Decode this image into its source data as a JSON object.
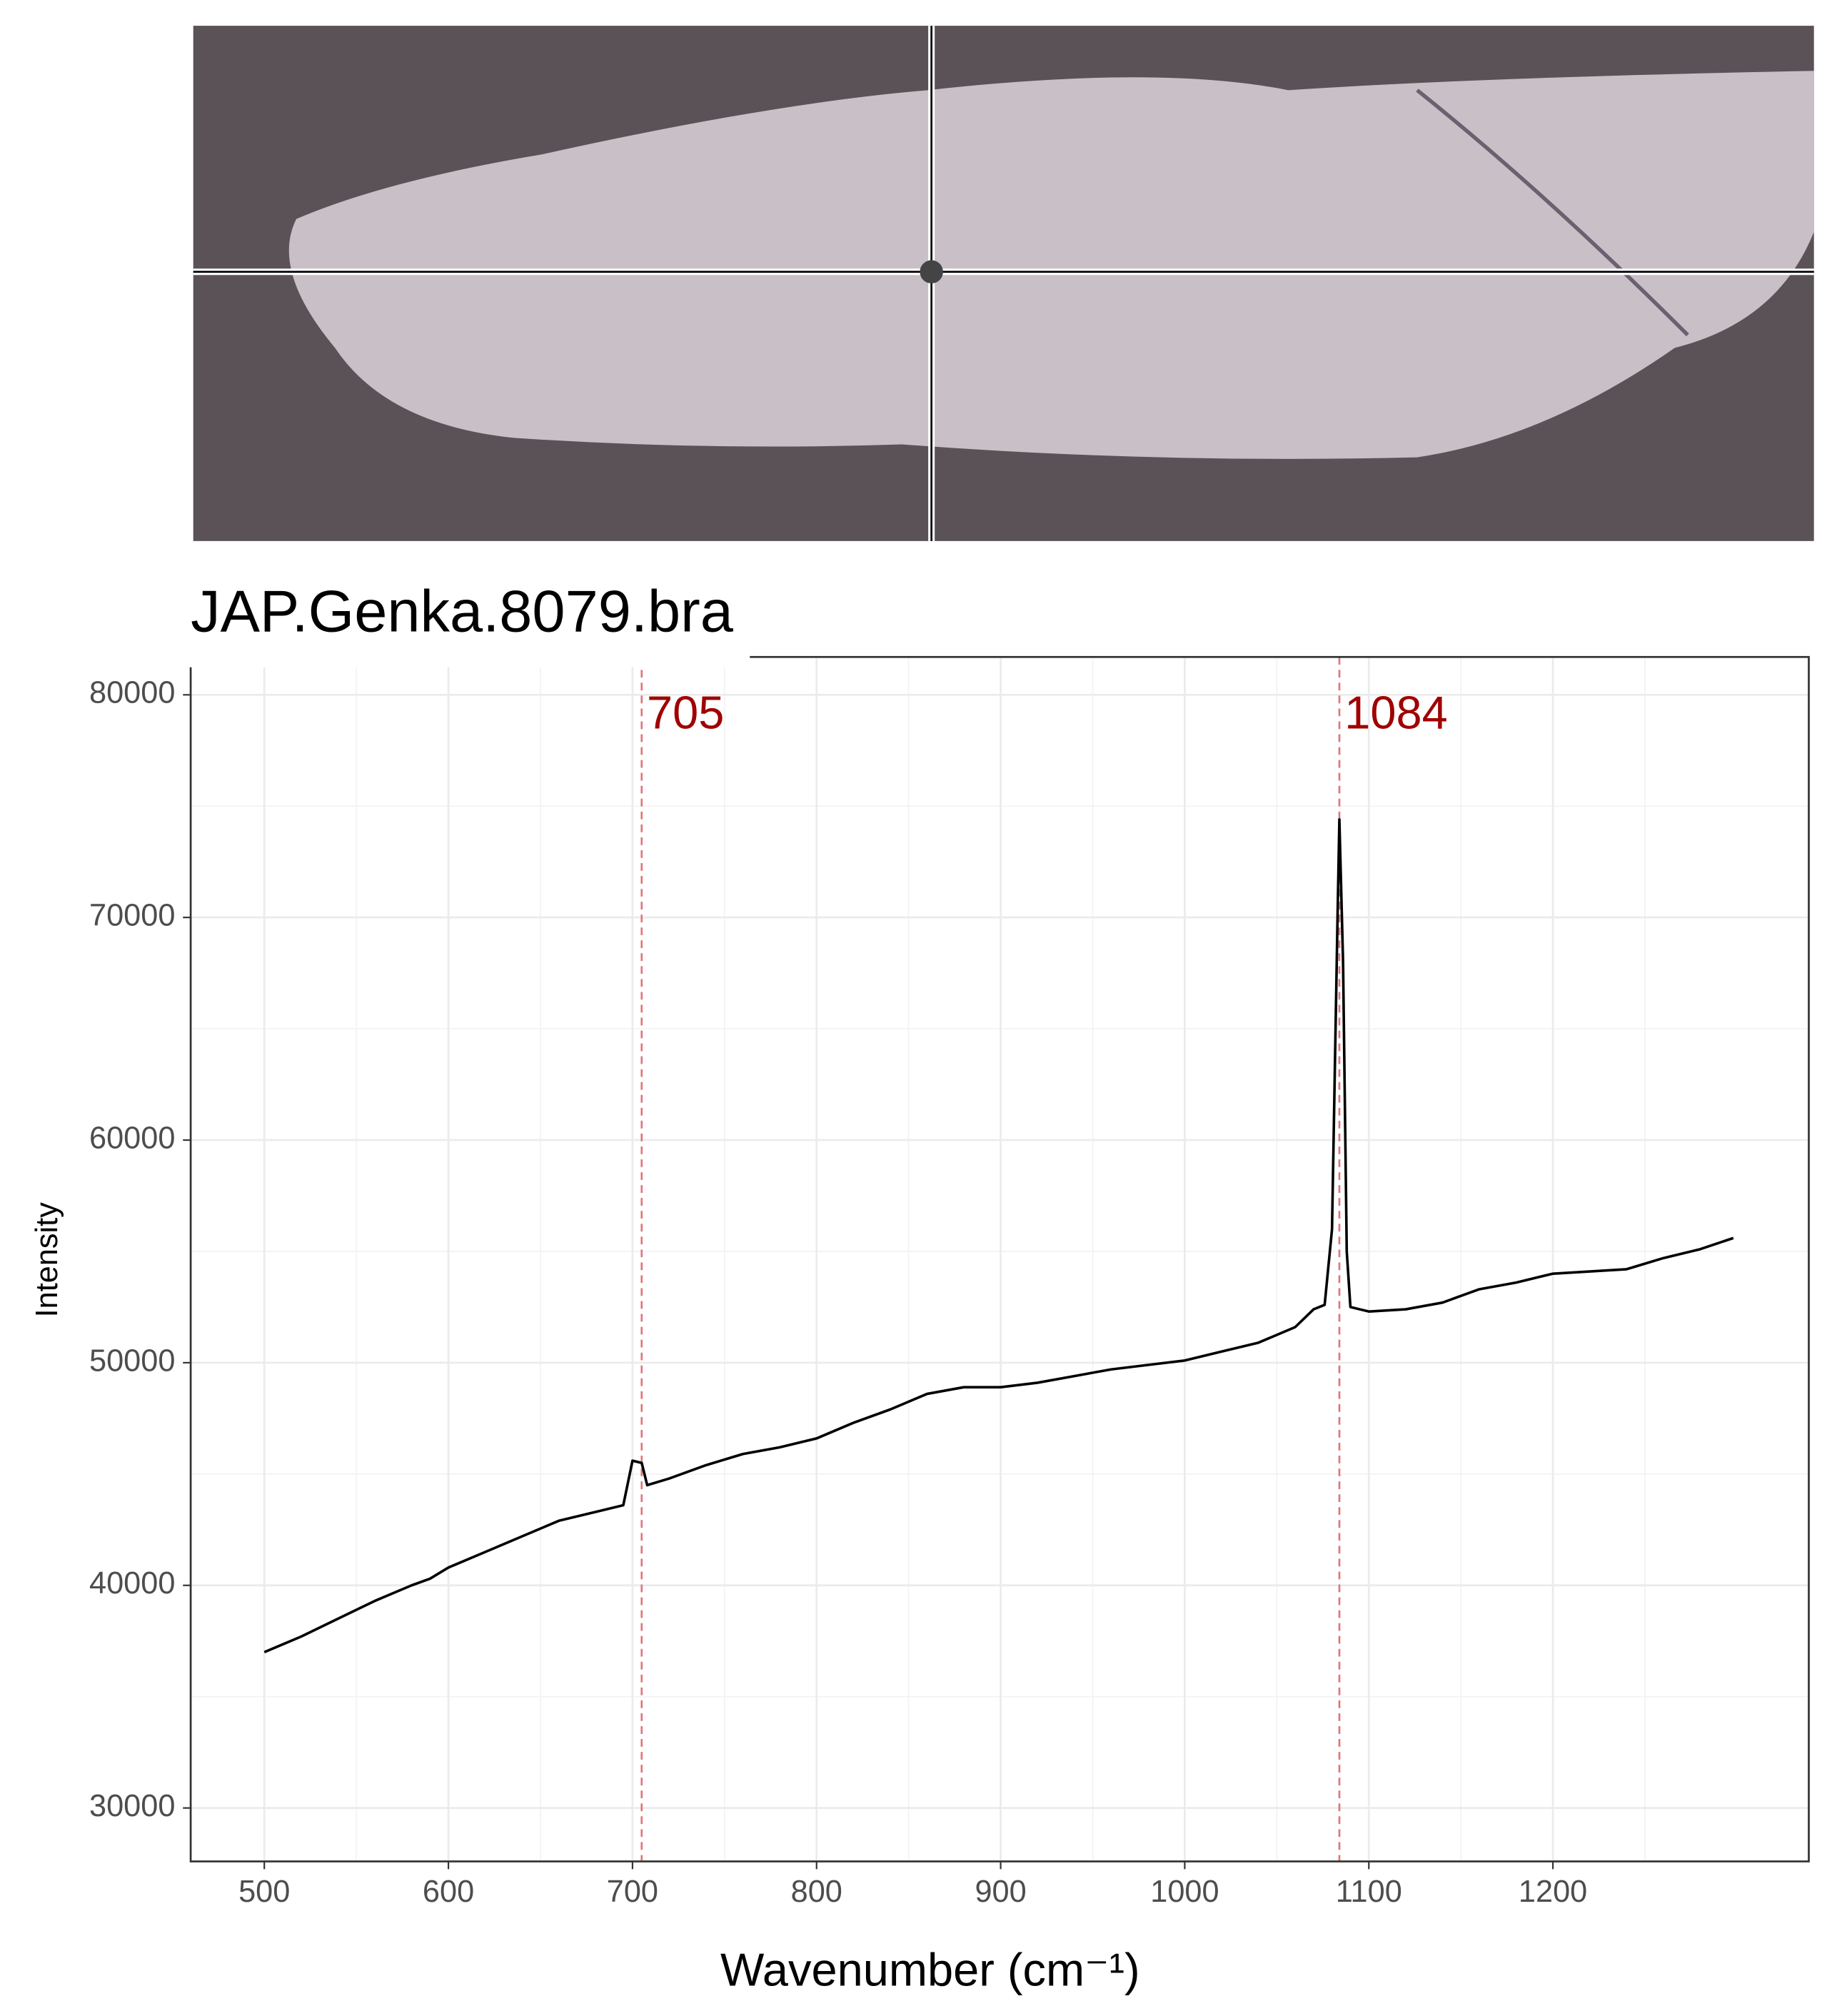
{
  "chart_data": {
    "type": "line",
    "title": "JAP.Genka.8079.bra",
    "xlabel": "Wavenumber (cm⁻¹)",
    "ylabel": "Intensity",
    "x": [
      500,
      520,
      540,
      560,
      580,
      590,
      600,
      620,
      640,
      660,
      680,
      695,
      700,
      705,
      708,
      720,
      740,
      760,
      780,
      800,
      820,
      840,
      860,
      880,
      900,
      920,
      940,
      960,
      980,
      1000,
      1020,
      1040,
      1060,
      1070,
      1076,
      1080,
      1083,
      1084,
      1086,
      1088,
      1090,
      1100,
      1120,
      1140,
      1160,
      1180,
      1200,
      1220,
      1240,
      1260,
      1280,
      1298
    ],
    "values": [
      37000,
      37700,
      38500,
      39300,
      40000,
      40300,
      40800,
      41500,
      42200,
      42900,
      43300,
      43600,
      45600,
      45500,
      44500,
      44800,
      45400,
      45900,
      46200,
      46600,
      47300,
      47900,
      48600,
      48900,
      48900,
      49100,
      49400,
      49700,
      49900,
      50100,
      50500,
      50900,
      51600,
      52400,
      52600,
      56000,
      70000,
      74400,
      68000,
      55000,
      52500,
      52300,
      52400,
      52700,
      53300,
      53600,
      54000,
      54100,
      54200,
      54700,
      55100,
      55600
    ],
    "color": "#000000",
    "xlim": [
      460,
      1339
    ],
    "ylim": [
      27600,
      81700
    ],
    "xticks": [
      500,
      600,
      700,
      800,
      900,
      1000,
      1100,
      1200
    ],
    "yticks": [
      30000,
      40000,
      50000,
      60000,
      70000,
      80000
    ],
    "grid": true,
    "vlines": [
      705,
      1084
    ],
    "vline_color": "#e0777a",
    "vline_label_color": "#a00000"
  }
}
